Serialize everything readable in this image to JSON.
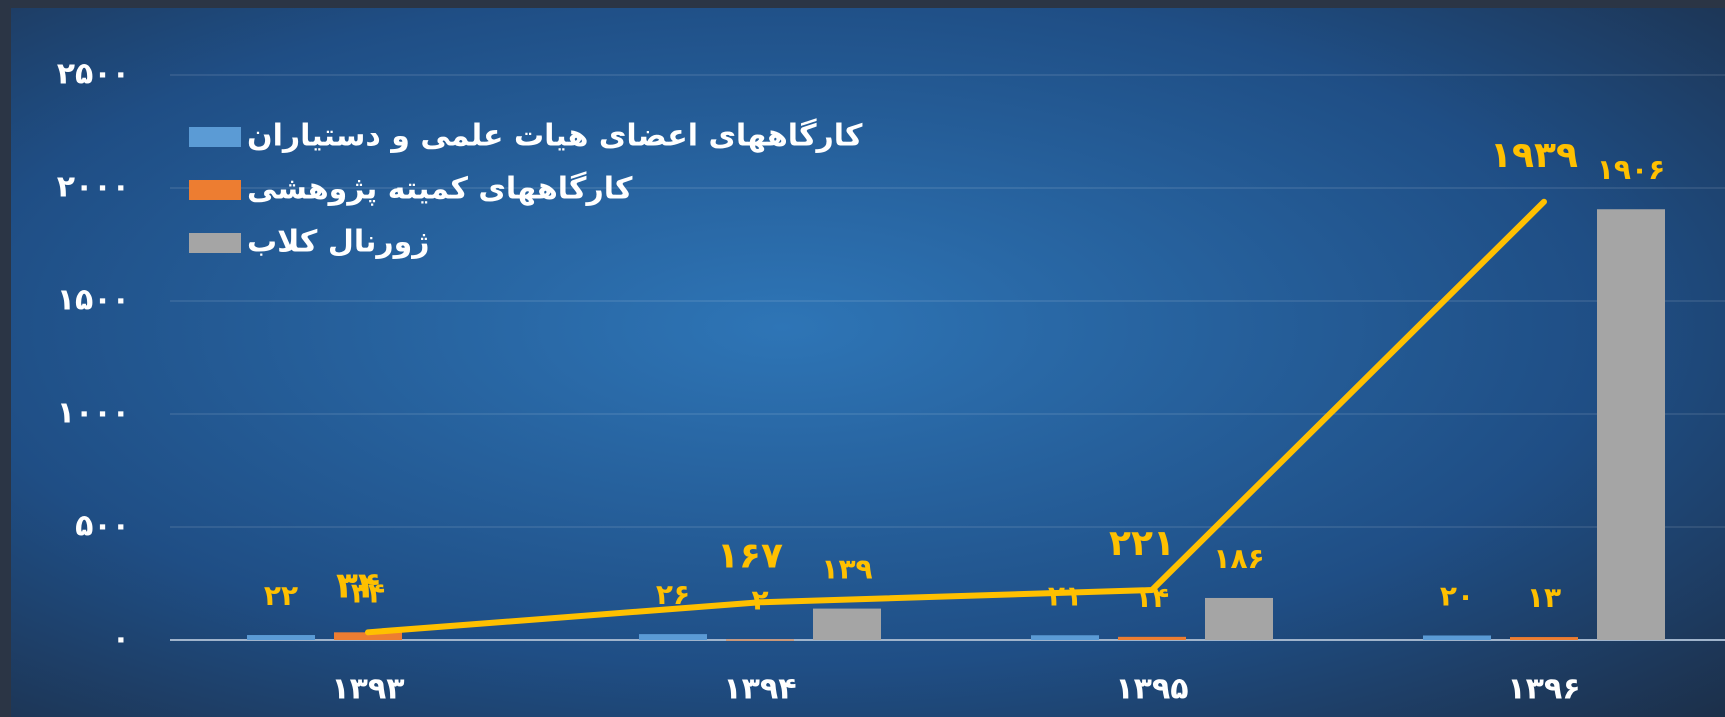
{
  "chart_data": {
    "type": "bar",
    "categories": [
      "۱۳۹۳",
      "۱۳۹۴",
      "۱۳۹۵",
      "۱۳۹۶"
    ],
    "series": [
      {
        "name": "کارگاههای اعضای هیات علمی و دستیاران",
        "color": "#5b9bd5",
        "values": [
          22,
          26,
          21,
          20
        ],
        "value_labels": [
          "۲۲",
          "۲۶",
          "۲۱",
          "۲۰"
        ]
      },
      {
        "name": "کارگاههای کمیته پژوهشی",
        "color": "#ed7d31",
        "values": [
          34,
          2,
          14,
          13
        ],
        "value_labels": [
          "۳۴",
          "۲",
          "۱۴",
          "۱۳"
        ]
      },
      {
        "name": "ژورنال کلاب",
        "color": "#a5a5a5",
        "values": [
          null,
          139,
          186,
          1906
        ],
        "value_labels": [
          null,
          "۱۳۹",
          "۱۸۶",
          "۱۹۰۶"
        ]
      }
    ],
    "line": {
      "color": "#ffc000",
      "values": [
        34,
        167,
        221,
        1939
      ],
      "value_labels": [
        "۳۴",
        "۱۶۷",
        "۲۲۱",
        "۱۹۳۹"
      ]
    },
    "ylim": [
      0,
      2500
    ],
    "yticks": [
      {
        "value": 0,
        "label": "۰"
      },
      {
        "value": 500,
        "label": "۵۰۰"
      },
      {
        "value": 1000,
        "label": "۱۰۰۰"
      },
      {
        "value": 1500,
        "label": "۱۵۰۰"
      },
      {
        "value": 2000,
        "label": "۲۰۰۰"
      },
      {
        "value": 2500,
        "label": "۲۵۰۰"
      }
    ],
    "grid": true,
    "legend": "top-left"
  }
}
